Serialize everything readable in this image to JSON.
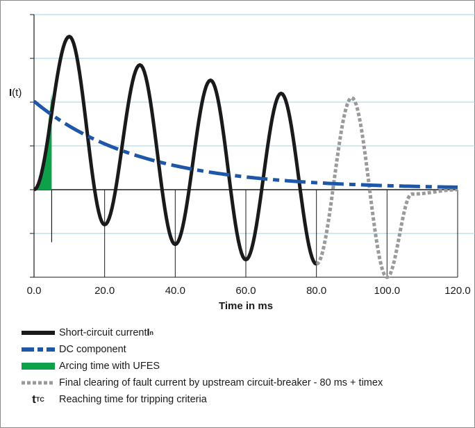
{
  "chart_data": {
    "type": "line",
    "title": "",
    "xlabel": "Time in ms",
    "ylabel_main": "I",
    "ylabel_suffix": "(t)",
    "xlim": [
      0,
      120
    ],
    "x_ticks": [
      "0.0",
      "20.0",
      "40.0",
      "60.0",
      "80.0",
      "100.0",
      "120.0"
    ],
    "y_range": [
      -2,
      4
    ],
    "grid": "horizontal",
    "series": [
      {
        "name": "Short-circuit current I",
        "subscript": "n",
        "style": "solid",
        "color": "#1a1a1a",
        "x": [
          0,
          10,
          20,
          30,
          40,
          50,
          60,
          70,
          80
        ],
        "y": [
          0,
          3.5,
          -0.8,
          2.85,
          -1.25,
          2.5,
          -1.6,
          2.2,
          -1.7
        ]
      },
      {
        "name": "DC component",
        "style": "dash-dot",
        "color": "#1f57a8",
        "x": [
          0,
          10,
          20,
          30,
          40,
          50,
          60,
          70,
          80,
          90,
          100,
          110,
          120
        ],
        "y": [
          2.0,
          1.55,
          1.2,
          0.95,
          0.75,
          0.58,
          0.44,
          0.34,
          0.25,
          0.18,
          0.12,
          0.08,
          0.05
        ]
      },
      {
        "name": "Arcing time with UFES",
        "style": "area",
        "color": "#0fa14a",
        "x": [
          0,
          5
        ],
        "y": [
          0,
          2.2
        ]
      },
      {
        "name": "Final clearing of fault current by upstream circuit-breaker - 80 ms + timex",
        "style": "dotted",
        "color": "#9a9a9a",
        "x": [
          80,
          90,
          100,
          107,
          120
        ],
        "y": [
          -1.7,
          2.1,
          -2.0,
          -0.1,
          0
        ]
      }
    ],
    "legend": [
      {
        "key": "short_circuit",
        "text": "Short-circuit current ",
        "bold": "I",
        "sub": "n"
      },
      {
        "key": "dc",
        "text": "DC component"
      },
      {
        "key": "arcing",
        "text": "Arcing time with UFES"
      },
      {
        "key": "clearing",
        "text": "Final clearing of fault current by upstream circuit-breaker - 80 ms + timex"
      },
      {
        "key": "ttc",
        "symbol": "t",
        "symbol_sub": "TC",
        "text": "Reaching time for tripping criteria"
      }
    ],
    "legend_position": "bottom"
  }
}
